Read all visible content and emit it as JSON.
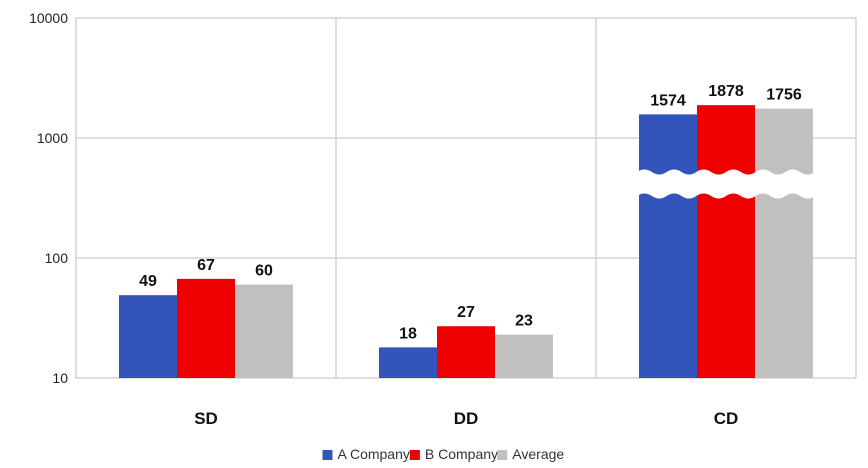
{
  "chart_data": {
    "type": "bar",
    "scale": "log",
    "categories": [
      "SD",
      "DD",
      "CD"
    ],
    "series": [
      {
        "name": "A Company",
        "color": "#3355bb",
        "values": [
          49,
          18,
          1574
        ]
      },
      {
        "name": "B Company",
        "color": "#ee0000",
        "values": [
          67,
          27,
          1878
        ]
      },
      {
        "name": "Average",
        "color": "#c0c0c0",
        "values": [
          60,
          23,
          1756
        ]
      }
    ],
    "yticks": [
      10,
      100,
      1000,
      10000
    ],
    "ytick_labels": [
      "10",
      "100",
      "1000",
      "10000"
    ],
    "ylim": [
      10,
      10000
    ],
    "grid": true,
    "axis_break": "CD",
    "legend_position": "bottom"
  }
}
